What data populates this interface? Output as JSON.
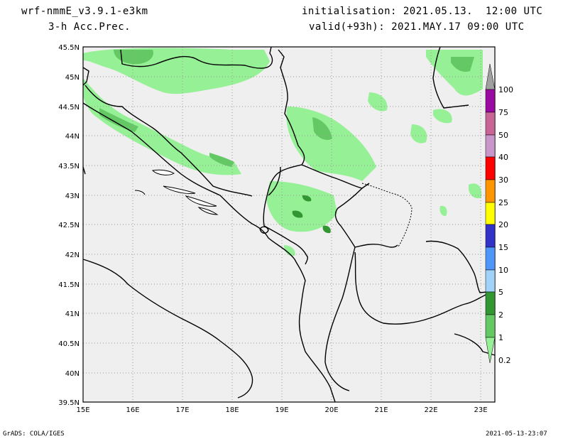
{
  "header": {
    "model": "wrf-nmmE_v3.9.1-e3km",
    "field": "3-h Acc.Prec.",
    "initialisation": "initialisation: 2021.05.13.  12:00 UTC",
    "valid": "valid(+93h): 2021.MAY.17 09:00 UTC"
  },
  "footer": {
    "credit": "GrADS: COLA/IGES",
    "timestamp": "2021-05-13-23:07"
  },
  "map": {
    "lon_range": [
      15,
      23.2
    ],
    "lat_range": [
      39.5,
      45.5
    ],
    "lat_labels": [
      "45.5N",
      "45N",
      "44.5N",
      "44N",
      "43.5N",
      "43N",
      "42.5N",
      "42N",
      "41.5N",
      "41N",
      "40.5N",
      "40N",
      "39.5N"
    ],
    "lon_labels": [
      "15E",
      "16E",
      "17E",
      "18E",
      "19E",
      "20E",
      "21E",
      "22E",
      "23E"
    ],
    "background_color": "#efefef",
    "grid": "dotted"
  },
  "legend": {
    "labels": [
      "100",
      "75",
      "50",
      "40",
      "30",
      "25",
      "20",
      "15",
      "10",
      "5",
      "2",
      "1",
      "0.2"
    ],
    "colors": [
      "#a0a0a0",
      "#9a0aa0",
      "#c86496",
      "#c896c8",
      "#ff0000",
      "#ff9600",
      "#ffff00",
      "#3232c8",
      "#5096fa",
      "#a0d2fa",
      "#329632",
      "#64c864",
      "#96f096"
    ]
  }
}
